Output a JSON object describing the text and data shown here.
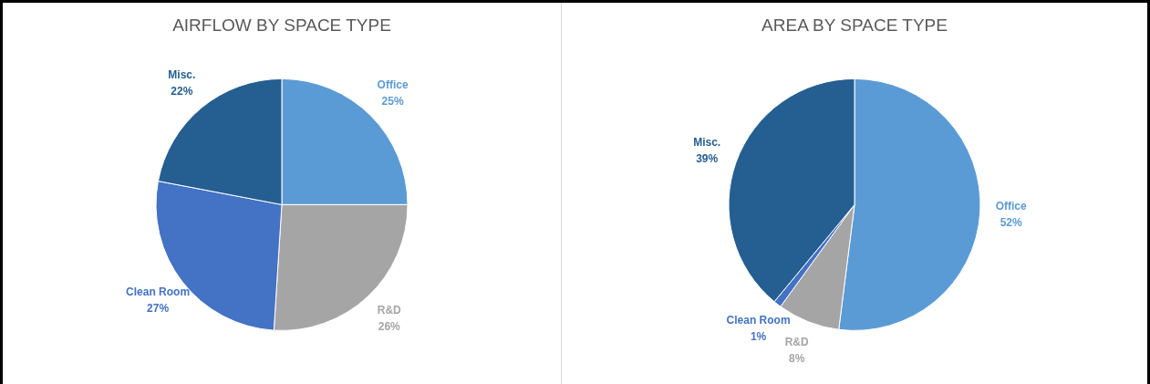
{
  "chart_data": [
    {
      "type": "pie",
      "title": "AIRFLOW BY SPACE TYPE",
      "categories": [
        "Office",
        "R&D",
        "Clean Room",
        "Misc."
      ],
      "values": [
        25,
        26,
        27,
        22
      ],
      "value_labels": [
        "25%",
        "26%",
        "27%",
        "22%"
      ],
      "colors": [
        "#5b9bd5",
        "#a5a5a5",
        "#4472c4",
        "#255e91"
      ]
    },
    {
      "type": "pie",
      "title": "AREA BY SPACE TYPE",
      "categories": [
        "Office",
        "R&D",
        "Clean Room",
        "Misc."
      ],
      "values": [
        52,
        8,
        1,
        39
      ],
      "value_labels": [
        "52%",
        "8%",
        "1%",
        "39%"
      ],
      "colors": [
        "#5b9bd5",
        "#a5a5a5",
        "#4472c4",
        "#255e91"
      ]
    }
  ]
}
